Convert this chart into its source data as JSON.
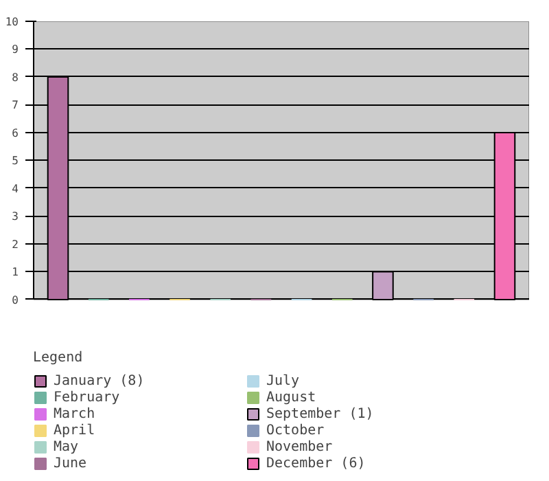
{
  "chart_data": {
    "type": "bar",
    "categories": [
      null,
      null,
      null,
      null,
      null,
      null,
      null,
      null,
      null,
      null,
      null,
      null
    ],
    "series": [
      {
        "name": "January (8)",
        "color": "#b370a0",
        "values": [
          8,
          null,
          null,
          null,
          null,
          null,
          null,
          null,
          null,
          null,
          null,
          null
        ]
      },
      {
        "name": "February",
        "color": "#6fb3a0",
        "values": [
          null,
          0,
          null,
          null,
          null,
          null,
          null,
          null,
          null,
          null,
          null,
          null
        ]
      },
      {
        "name": "March",
        "color": "#d870e8",
        "values": [
          null,
          null,
          0,
          null,
          null,
          null,
          null,
          null,
          null,
          null,
          null,
          null
        ]
      },
      {
        "name": "April",
        "color": "#f4d878",
        "values": [
          null,
          null,
          null,
          0,
          null,
          null,
          null,
          null,
          null,
          null,
          null,
          null
        ]
      },
      {
        "name": "May",
        "color": "#a8d4c8",
        "values": [
          null,
          null,
          null,
          null,
          0,
          null,
          null,
          null,
          null,
          null,
          null,
          null
        ]
      },
      {
        "name": "June",
        "color": "#a47096",
        "values": [
          null,
          null,
          null,
          null,
          null,
          0,
          null,
          null,
          null,
          null,
          null,
          null
        ]
      },
      {
        "name": "July",
        "color": "#b4d8e8",
        "values": [
          null,
          null,
          null,
          null,
          null,
          null,
          0,
          null,
          null,
          null,
          null,
          null
        ]
      },
      {
        "name": "August",
        "color": "#98c070",
        "values": [
          null,
          null,
          null,
          null,
          null,
          null,
          null,
          0,
          null,
          null,
          null,
          null
        ]
      },
      {
        "name": "September (1)",
        "color": "#c4a0c4",
        "values": [
          null,
          null,
          null,
          null,
          null,
          null,
          null,
          null,
          1,
          null,
          null,
          null
        ]
      },
      {
        "name": "October",
        "color": "#8898b8",
        "values": [
          null,
          null,
          null,
          null,
          null,
          null,
          null,
          null,
          null,
          0,
          null,
          null
        ]
      },
      {
        "name": "November",
        "color": "#f8d0dc",
        "values": [
          null,
          null,
          null,
          null,
          null,
          null,
          null,
          null,
          null,
          null,
          0,
          null
        ]
      },
      {
        "name": "December (6)",
        "color": "#f470b4",
        "values": [
          null,
          null,
          null,
          null,
          null,
          null,
          null,
          null,
          null,
          null,
          null,
          6
        ]
      }
    ],
    "ylim": [
      0,
      10
    ],
    "yticks": [
      0,
      1,
      2,
      3,
      4,
      5,
      6,
      7,
      8,
      9,
      10
    ],
    "grid": "y",
    "tick_labels": "y",
    "legend": "bottom",
    "legend_title": "Legend"
  }
}
